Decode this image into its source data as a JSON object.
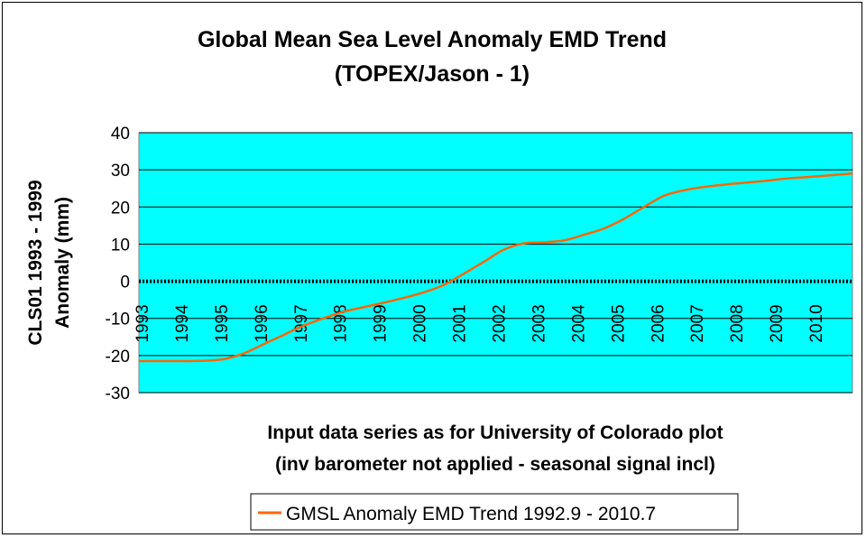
{
  "chart_data": {
    "type": "line",
    "title": "Global Mean Sea Level Anomaly EMD Trend",
    "subtitle": "(TOPEX/Jason - 1)",
    "ylabel_line1": "CLS01 1993 - 1999",
    "ylabel_line2": "Anomaly (mm)",
    "xlabel_line1": "Input data series as for University of Colorado plot",
    "xlabel_line2": "(inv barometer not applied - seasonal signal incl)",
    "ylim": [
      -30,
      40
    ],
    "xlim": [
      1992.9,
      2010.7
    ],
    "yticks": [
      "40",
      "30",
      "20",
      "10",
      "0",
      "-10",
      "-20",
      "-30"
    ],
    "xtick_labels": [
      "1993",
      "1994",
      "1995",
      "1996",
      "1997",
      "1998",
      "1999",
      "2000",
      "2001",
      "2002",
      "2003",
      "2004",
      "2005",
      "2006",
      "2007",
      "2008",
      "2009",
      "2010"
    ],
    "grid": true,
    "plot_background": "#00ffff",
    "zero_line_color": "#000000",
    "legend_position": "bottom",
    "series": [
      {
        "name": "GMSL Anomaly EMD Trend 1992.9 - 2010.7",
        "color": "#ff6600",
        "x": [
          1992.9,
          1993.5,
          1994.0,
          1994.5,
          1995.0,
          1995.5,
          1996.0,
          1996.5,
          1997.0,
          1997.5,
          1998.0,
          1998.5,
          1999.0,
          1999.5,
          2000.0,
          2000.5,
          2001.0,
          2001.5,
          2002.0,
          2002.5,
          2003.0,
          2003.5,
          2004.0,
          2004.5,
          2005.0,
          2005.5,
          2006.0,
          2006.5,
          2007.0,
          2007.5,
          2008.0,
          2008.5,
          2009.0,
          2009.5,
          2010.0,
          2010.7
        ],
        "y": [
          -21.5,
          -21.5,
          -21.5,
          -21.4,
          -21.0,
          -19.5,
          -17.0,
          -14.5,
          -12.0,
          -10.0,
          -8.2,
          -7.0,
          -5.8,
          -4.5,
          -3.0,
          -1.0,
          2.0,
          5.2,
          8.5,
          10.2,
          10.5,
          11.0,
          12.5,
          14.2,
          16.8,
          20.0,
          23.0,
          24.5,
          25.4,
          26.0,
          26.5,
          27.0,
          27.6,
          28.0,
          28.4,
          29.0
        ]
      }
    ]
  }
}
